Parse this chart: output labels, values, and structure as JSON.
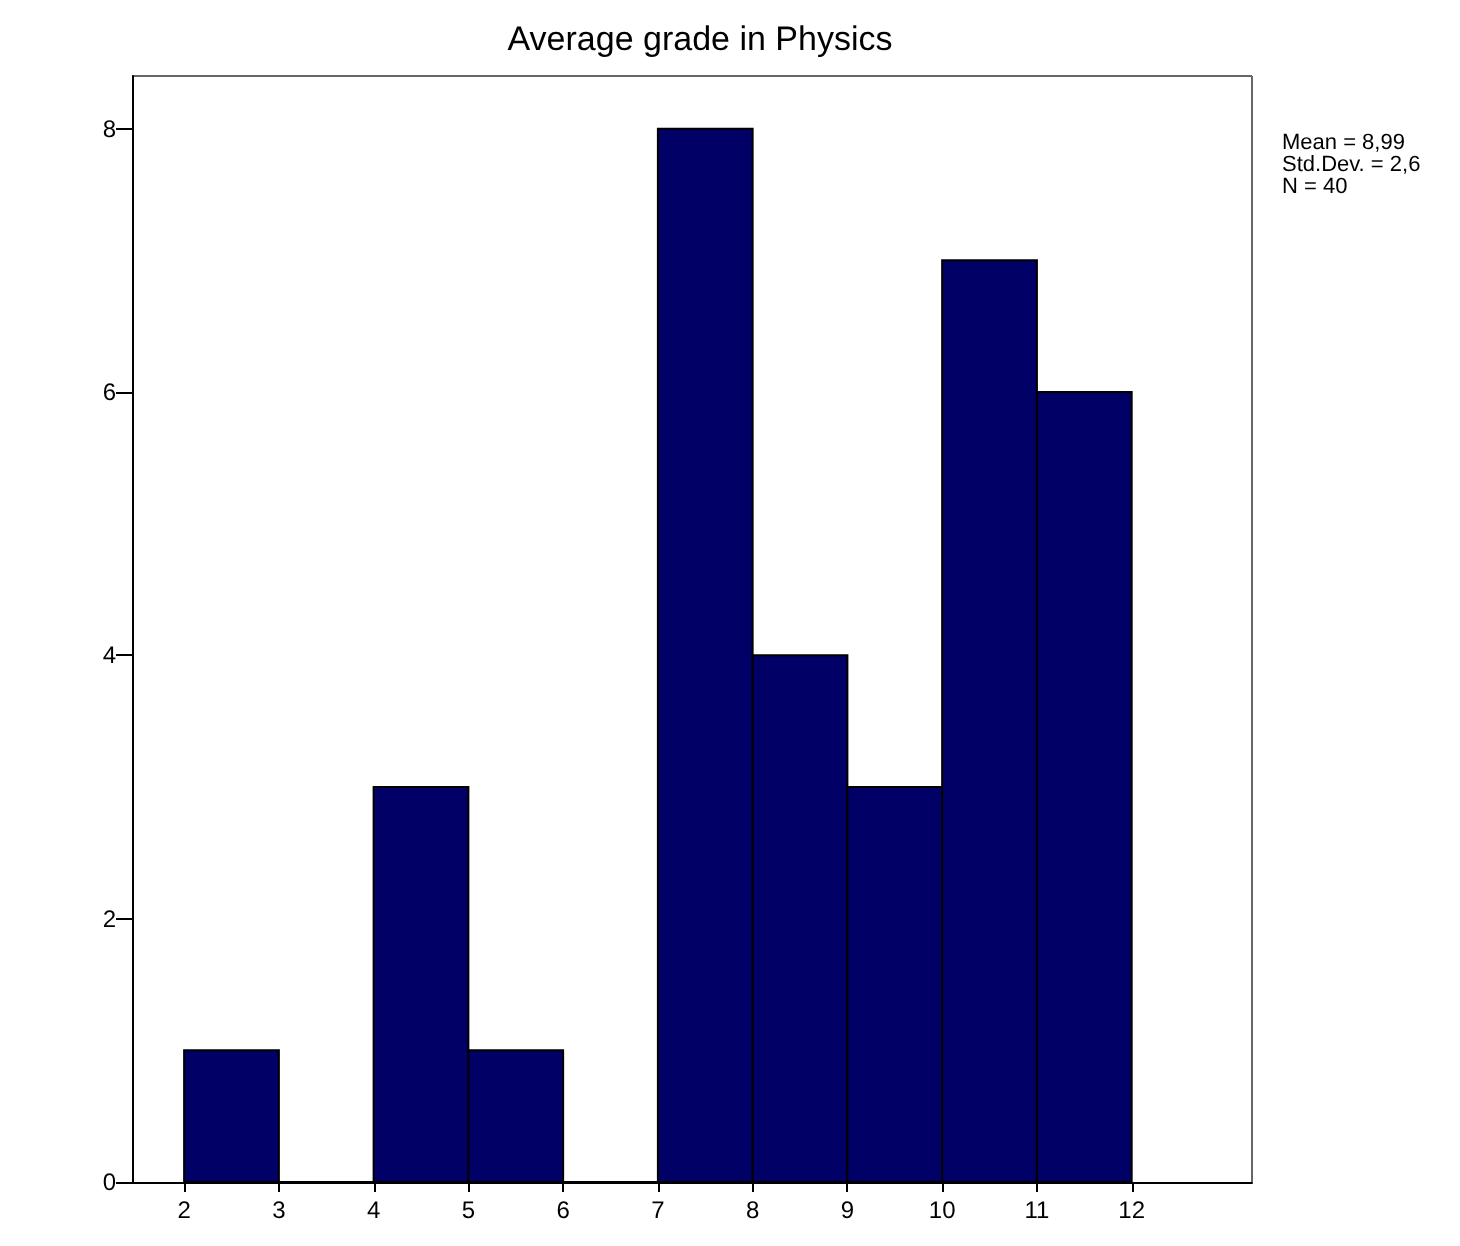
{
  "chart_data": {
    "type": "histogram",
    "title": "Average grade in Physics",
    "bins": [
      2,
      3,
      4,
      5,
      6,
      7,
      8,
      9,
      10,
      11,
      12
    ],
    "values": [
      1,
      0,
      3,
      1,
      0,
      8,
      4,
      3,
      7,
      6
    ],
    "color": "#000066",
    "xlim": [
      1.45,
      13.27
    ],
    "xticks": [
      2,
      3,
      4,
      5,
      6,
      7,
      8,
      9,
      10,
      11,
      12
    ],
    "ylim": [
      0,
      8.4
    ],
    "yticks": [
      0,
      2,
      4,
      6,
      8
    ],
    "grid": false,
    "annotations": [
      "Mean = 8,99",
      "Std.Dev. = 2,6",
      "N = 40"
    ]
  }
}
